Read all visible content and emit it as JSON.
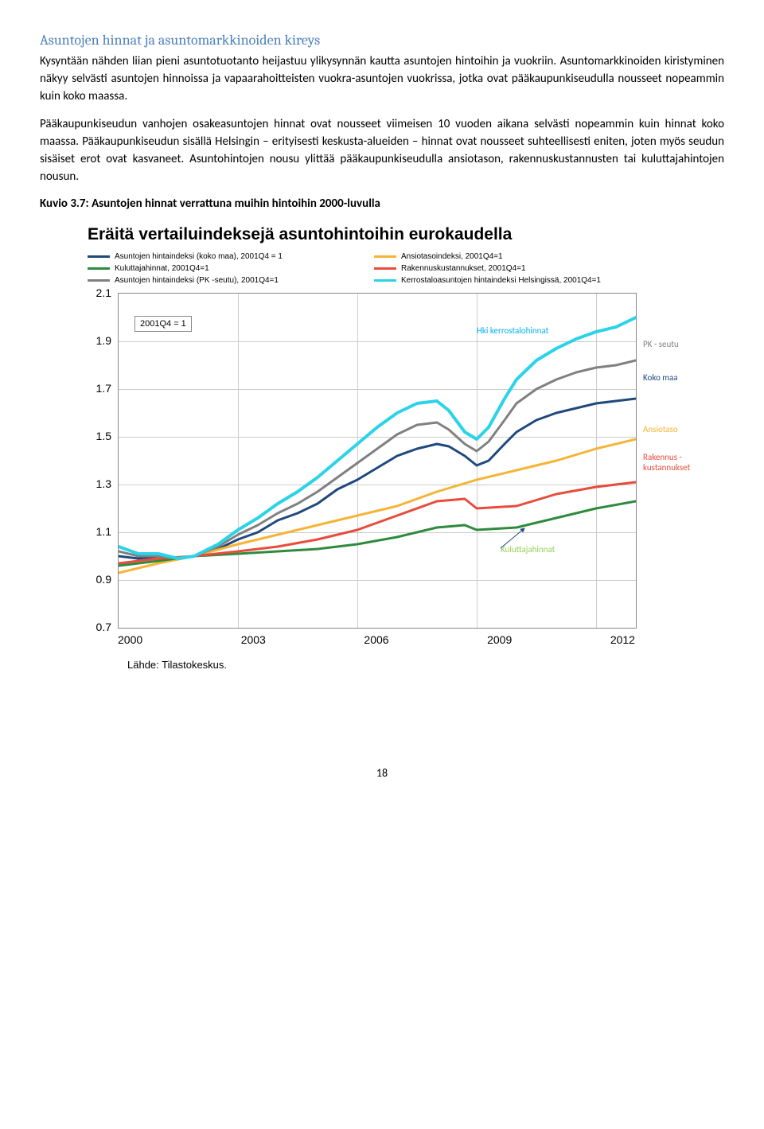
{
  "section_title": "Asuntojen hinnat ja asuntomarkkinoiden kireys",
  "para1": "Kysyntään nähden liian pieni asuntotuotanto heijastuu ylikysynnän kautta asuntojen hintoihin ja vuokriin. Asuntomarkkinoiden kiristyminen näkyy selvästi asuntojen hinnoissa ja vapaarahoitteisten vuokra-asuntojen vuokrissa, jotka ovat pääkaupunkiseudulla nousseet nopeammin kuin koko maassa.",
  "para2": "Pääkaupunkiseudun vanhojen osakeasuntojen hinnat ovat nousseet viimeisen 10 vuoden aikana selvästi nopeammin kuin hinnat koko maassa. Pääkaupunkiseudun sisällä Helsingin – erityisesti keskusta-alueiden – hinnat ovat nousseet suhteellisesti eniten, joten myös seudun sisäiset erot ovat kasvaneet. Asuntohintojen nousu ylittää pääkaupunkiseudulla ansiotason, rakennuskustannusten tai kuluttajahintojen nousun.",
  "kuvio_caption": "Kuvio  3.7: Asuntojen hinnat verrattuna muihin hintoihin 2000-luvulla",
  "chart": {
    "title": "Eräitä vertailuindeksejä asuntohintoihin eurokaudella",
    "type": "line",
    "ylim": [
      0.7,
      2.1
    ],
    "yticks": [
      "2.1",
      "1.9",
      "1.7",
      "1.5",
      "1.3",
      "1.1",
      "0.9",
      "0.7"
    ],
    "xlim": [
      2000,
      2013
    ],
    "xticks": [
      "2000",
      "2003",
      "2006",
      "2009",
      "2012"
    ],
    "inset_label": "2001Q4 = 1",
    "annots": {
      "hki": {
        "text": "Hki  kerrostalohinnat",
        "color": "#00b0f0"
      },
      "kuluttaja": {
        "text": "Kuluttajahinnat",
        "color": "#92d050"
      }
    },
    "side_labels": [
      {
        "text": "PK  - seutu",
        "color": "#808080"
      },
      {
        "text": "Koko maa",
        "color": "#1f497d"
      },
      {
        "text": "Ansiotaso",
        "color": "#f6b436"
      },
      {
        "text": "Rakennus   -kustannukset",
        "color": "#e74c3c"
      }
    ],
    "legend": [
      {
        "label": "Asuntojen hintaindeksi (koko maa), 2001Q4 = 1",
        "color": "#1f497d"
      },
      {
        "label": "Ansiotasoindeksi, 2001Q4=1",
        "color": "#f6b436"
      },
      {
        "label": "Kuluttajahinnat, 2001Q4=1",
        "color": "#2e8b3d"
      },
      {
        "label": "Rakennuskustannukset, 2001Q4=1",
        "color": "#e74c3c"
      },
      {
        "label": "Asuntojen hintaindeksi (PK          -seutu), 2001Q4=1",
        "color": "#808080"
      },
      {
        "label": "Kerrostaloasuntojen hintaindeksi Helsingissä, 2001Q4=1",
        "color": "#2bd3e8"
      }
    ],
    "series": {
      "koko_maa": {
        "color": "#1f497d",
        "w": 3,
        "pts": [
          [
            2000,
            1.0
          ],
          [
            2000.5,
            0.99
          ],
          [
            2001,
            1.0
          ],
          [
            2001.5,
            0.99
          ],
          [
            2001.9,
            1.0
          ],
          [
            2002.5,
            1.03
          ],
          [
            2003,
            1.07
          ],
          [
            2003.5,
            1.1
          ],
          [
            2004,
            1.15
          ],
          [
            2004.5,
            1.18
          ],
          [
            2005,
            1.22
          ],
          [
            2005.5,
            1.28
          ],
          [
            2006,
            1.32
          ],
          [
            2006.5,
            1.37
          ],
          [
            2007,
            1.42
          ],
          [
            2007.5,
            1.45
          ],
          [
            2008,
            1.47
          ],
          [
            2008.3,
            1.46
          ],
          [
            2008.7,
            1.42
          ],
          [
            2009,
            1.38
          ],
          [
            2009.3,
            1.4
          ],
          [
            2009.7,
            1.47
          ],
          [
            2010,
            1.52
          ],
          [
            2010.5,
            1.57
          ],
          [
            2011,
            1.6
          ],
          [
            2011.5,
            1.62
          ],
          [
            2012,
            1.64
          ],
          [
            2012.5,
            1.65
          ],
          [
            2013,
            1.66
          ]
        ]
      },
      "ansiotaso": {
        "color": "#f6b436",
        "w": 3,
        "pts": [
          [
            2000,
            0.93
          ],
          [
            2001,
            0.97
          ],
          [
            2001.9,
            1.0
          ],
          [
            2003,
            1.05
          ],
          [
            2004,
            1.09
          ],
          [
            2005,
            1.13
          ],
          [
            2006,
            1.17
          ],
          [
            2007,
            1.21
          ],
          [
            2008,
            1.27
          ],
          [
            2009,
            1.32
          ],
          [
            2010,
            1.36
          ],
          [
            2011,
            1.4
          ],
          [
            2012,
            1.45
          ],
          [
            2013,
            1.49
          ]
        ]
      },
      "kuluttaja": {
        "color": "#2e8b3d",
        "w": 3,
        "pts": [
          [
            2000,
            0.96
          ],
          [
            2001,
            0.98
          ],
          [
            2001.9,
            1.0
          ],
          [
            2003,
            1.01
          ],
          [
            2004,
            1.02
          ],
          [
            2005,
            1.03
          ],
          [
            2006,
            1.05
          ],
          [
            2007,
            1.08
          ],
          [
            2008,
            1.12
          ],
          [
            2008.7,
            1.13
          ],
          [
            2009,
            1.11
          ],
          [
            2010,
            1.12
          ],
          [
            2011,
            1.16
          ],
          [
            2012,
            1.2
          ],
          [
            2013,
            1.23
          ]
        ]
      },
      "rakennus": {
        "color": "#e74c3c",
        "w": 3,
        "pts": [
          [
            2000,
            0.97
          ],
          [
            2001,
            0.99
          ],
          [
            2001.9,
            1.0
          ],
          [
            2003,
            1.02
          ],
          [
            2004,
            1.04
          ],
          [
            2005,
            1.07
          ],
          [
            2006,
            1.11
          ],
          [
            2007,
            1.17
          ],
          [
            2008,
            1.23
          ],
          [
            2008.7,
            1.24
          ],
          [
            2009,
            1.2
          ],
          [
            2010,
            1.21
          ],
          [
            2011,
            1.26
          ],
          [
            2012,
            1.29
          ],
          [
            2013,
            1.31
          ]
        ]
      },
      "pk_seutu": {
        "color": "#808080",
        "w": 3,
        "pts": [
          [
            2000,
            1.02
          ],
          [
            2000.5,
            1.0
          ],
          [
            2001,
            1.0
          ],
          [
            2001.5,
            0.99
          ],
          [
            2001.9,
            1.0
          ],
          [
            2002.5,
            1.04
          ],
          [
            2003,
            1.09
          ],
          [
            2003.5,
            1.13
          ],
          [
            2004,
            1.18
          ],
          [
            2004.5,
            1.22
          ],
          [
            2005,
            1.27
          ],
          [
            2005.5,
            1.33
          ],
          [
            2006,
            1.39
          ],
          [
            2006.5,
            1.45
          ],
          [
            2007,
            1.51
          ],
          [
            2007.5,
            1.55
          ],
          [
            2008,
            1.56
          ],
          [
            2008.3,
            1.53
          ],
          [
            2008.7,
            1.47
          ],
          [
            2009,
            1.44
          ],
          [
            2009.3,
            1.48
          ],
          [
            2009.7,
            1.57
          ],
          [
            2010,
            1.64
          ],
          [
            2010.5,
            1.7
          ],
          [
            2011,
            1.74
          ],
          [
            2011.5,
            1.77
          ],
          [
            2012,
            1.79
          ],
          [
            2012.5,
            1.8
          ],
          [
            2013,
            1.82
          ]
        ]
      },
      "hki_kerros": {
        "color": "#2bd3e8",
        "w": 4,
        "pts": [
          [
            2000,
            1.04
          ],
          [
            2000.5,
            1.01
          ],
          [
            2001,
            1.01
          ],
          [
            2001.5,
            0.99
          ],
          [
            2001.9,
            1.0
          ],
          [
            2002.5,
            1.05
          ],
          [
            2003,
            1.11
          ],
          [
            2003.5,
            1.16
          ],
          [
            2004,
            1.22
          ],
          [
            2004.5,
            1.27
          ],
          [
            2005,
            1.33
          ],
          [
            2005.5,
            1.4
          ],
          [
            2006,
            1.47
          ],
          [
            2006.5,
            1.54
          ],
          [
            2007,
            1.6
          ],
          [
            2007.5,
            1.64
          ],
          [
            2008,
            1.65
          ],
          [
            2008.3,
            1.61
          ],
          [
            2008.7,
            1.52
          ],
          [
            2009,
            1.49
          ],
          [
            2009.3,
            1.54
          ],
          [
            2009.7,
            1.66
          ],
          [
            2010,
            1.74
          ],
          [
            2010.5,
            1.82
          ],
          [
            2011,
            1.87
          ],
          [
            2011.5,
            1.91
          ],
          [
            2012,
            1.94
          ],
          [
            2012.5,
            1.96
          ],
          [
            2013,
            2.0
          ]
        ]
      }
    },
    "source": "Lähde: Tilastokeskus."
  },
  "page_number": "18"
}
